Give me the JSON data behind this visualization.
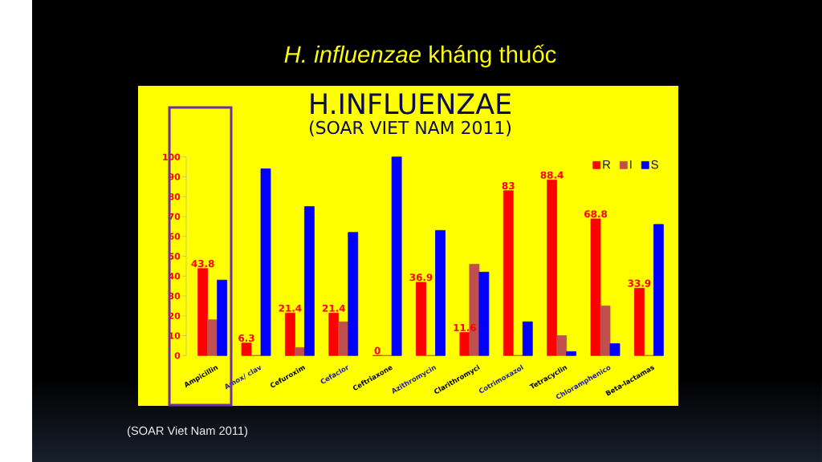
{
  "chart_data": {
    "type": "bar",
    "title": "H.INFLUENZAE",
    "subtitle": "(SOAR VIET NAM 2011)",
    "annotations": [
      "*H. influenzae* kháng thuốc",
      "(SOAR Viet Nam 2011)"
    ],
    "categories": [
      "Ampicillin",
      "Amox/ clav",
      "Cefuroxim",
      "Cefaclor",
      "Ceftriaxone",
      "Azithromycin",
      "Clarithromyci",
      "Cotrimoxazol",
      "Tetracyclin",
      "Chloramphenico",
      "Beta-lactamas"
    ],
    "series": [
      {
        "name": "R",
        "color": "#ff0000",
        "values": [
          43.8,
          6.3,
          21.4,
          21.4,
          0,
          36.9,
          11.6,
          83,
          88.4,
          68.8,
          33.9
        ],
        "value_labels": [
          "43.8",
          "6.3",
          "21.4",
          "21.4",
          "0",
          "36.9",
          "11.6",
          "83",
          "88.4",
          "68.8",
          "33.9"
        ]
      },
      {
        "name": "I",
        "color": "#c0504d",
        "values": [
          18,
          0,
          4,
          17,
          0,
          0,
          46,
          0,
          10,
          25,
          0
        ]
      },
      {
        "name": "S",
        "color": "#0000ff",
        "values": [
          38,
          94,
          75,
          62,
          100,
          63,
          42,
          17,
          2,
          6,
          66
        ]
      }
    ],
    "ylim": [
      0,
      100
    ],
    "yticks": [
      0,
      10,
      20,
      30,
      40,
      50,
      60,
      70,
      80,
      90,
      100
    ],
    "legend": "top right"
  }
}
